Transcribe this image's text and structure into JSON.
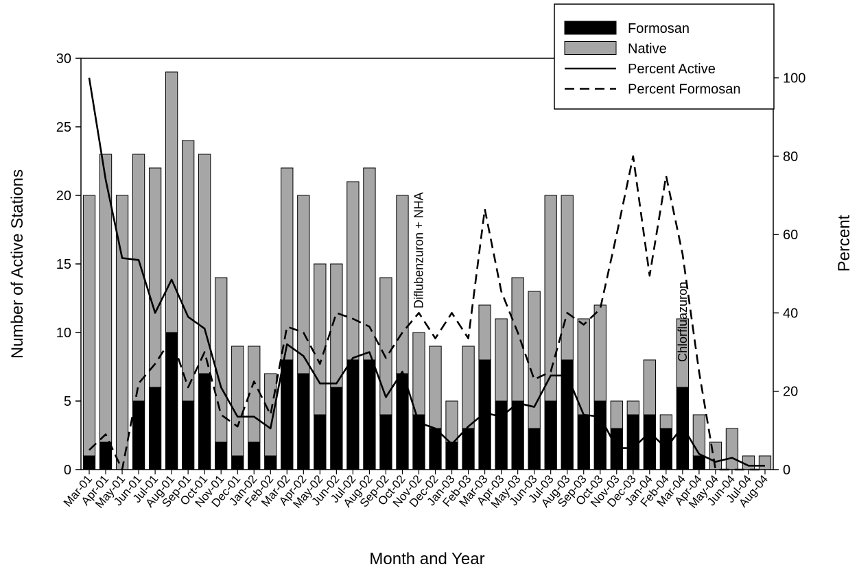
{
  "chart_data": {
    "type": "bar",
    "xlabel": "Month and Year",
    "ylabel": "Number of Active Stations",
    "y2label": "Percent",
    "ylim": [
      0,
      30
    ],
    "y2lim": [
      0,
      105
    ],
    "yticks": [
      0,
      5,
      10,
      15,
      20,
      25,
      30
    ],
    "y2ticks": [
      0,
      20,
      40,
      60,
      80,
      100
    ],
    "grid": false,
    "legend_position": "top-right",
    "categories": [
      "Mar-01",
      "Apr-01",
      "May-01",
      "Jun-01",
      "Jul-01",
      "Aug-01",
      "Sep-01",
      "Oct-01",
      "Nov-01",
      "Dec-01",
      "Jan-02",
      "Feb-02",
      "Mar-02",
      "Apr-02",
      "May-02",
      "Jun-02",
      "Jul-02",
      "Aug-02",
      "Sep-02",
      "Oct-02",
      "Nov-02",
      "Dec-02",
      "Jan-03",
      "Feb-03",
      "Mar-03",
      "Apr-03",
      "May-03",
      "Jun-03",
      "Jul-03",
      "Aug-03",
      "Sep-03",
      "Oct-03",
      "Nov-03",
      "Dec-03",
      "Jan-04",
      "Feb-04",
      "Mar-04",
      "Apr-04",
      "May-04",
      "Jun-04",
      "Jul-04",
      "Aug-04"
    ],
    "series": [
      {
        "name": "Formosan",
        "kind": "bar",
        "color": "#000000",
        "values": [
          1,
          2,
          0,
          5,
          6,
          10,
          5,
          7,
          2,
          1,
          2,
          1,
          8,
          7,
          4,
          6,
          8,
          8,
          4,
          7,
          4,
          3,
          2,
          3,
          8,
          5,
          5,
          3,
          5,
          8,
          4,
          5,
          3,
          4,
          4,
          3,
          6,
          1,
          0,
          0,
          0,
          0
        ]
      },
      {
        "name": "Native",
        "kind": "bar",
        "color": "#a6a6a6",
        "values": [
          19,
          21,
          20,
          18,
          16,
          19,
          19,
          16,
          12,
          8,
          7,
          6,
          14,
          13,
          11,
          9,
          13,
          14,
          10,
          13,
          6,
          6,
          3,
          6,
          4,
          6,
          9,
          10,
          15,
          12,
          7,
          7,
          2,
          1,
          4,
          1,
          5,
          3,
          2,
          3,
          1,
          1
        ]
      },
      {
        "name": "Percent Active",
        "kind": "line",
        "axis": "right",
        "dash": "solid",
        "color": "#000000",
        "values": [
          100,
          74,
          54,
          53.5,
          40,
          48.5,
          39,
          36,
          21,
          13.5,
          13.5,
          10.5,
          32,
          29,
          22,
          22,
          28.5,
          30,
          18.5,
          25,
          12,
          10.5,
          6.5,
          11,
          14.5,
          13.5,
          17,
          16,
          24,
          24,
          14,
          13.5,
          5.5,
          5.5,
          9.5,
          5.5,
          11,
          4,
          2,
          3,
          1,
          1
        ]
      },
      {
        "name": "Percent Formosan",
        "kind": "line",
        "axis": "right",
        "dash": "dashed",
        "color": "#000000",
        "values": [
          5,
          9,
          0,
          22,
          27,
          33.5,
          21,
          30,
          14,
          11,
          22.5,
          14,
          36.5,
          35,
          27,
          40,
          38.5,
          36.5,
          28.5,
          35,
          40,
          33.5,
          40,
          33.5,
          66.5,
          45.5,
          35,
          23,
          25,
          40,
          37,
          41,
          60,
          80,
          49.5,
          75,
          55,
          25,
          0,
          0,
          0,
          0
        ]
      }
    ],
    "annotations": [
      {
        "text": "Diflubenzuron + NHA",
        "category": "Nov-02",
        "rotation": -90
      },
      {
        "text": "Chlorfluazuron",
        "category": "Mar-04",
        "rotation": -90
      }
    ]
  }
}
